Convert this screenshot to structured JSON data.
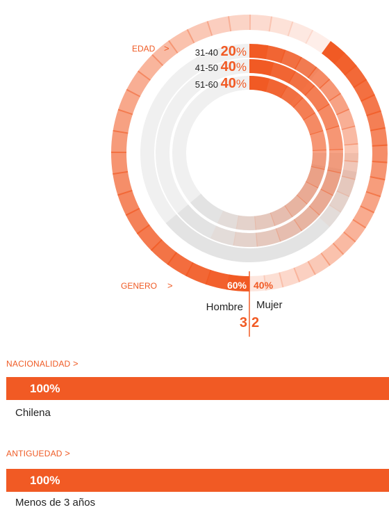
{
  "colors": {
    "accent": "#f15a24",
    "track": "#e6e6e6"
  },
  "sections": {
    "edad_label": "EDAD",
    "genero_label": "GENERO",
    "nacionalidad_label": "NACIONALIDAD",
    "antiguedad_label": "ANTIGUEDAD",
    "arrow": ">"
  },
  "chart_data": [
    {
      "type": "radial_bar",
      "group": "EDAD",
      "categories": [
        "31-40",
        "41-50",
        "51-60"
      ],
      "values": [
        20,
        40,
        40
      ],
      "unit": "%"
    },
    {
      "type": "pie",
      "group": "GENERO",
      "categories": [
        "Hombre",
        "Mujer"
      ],
      "values": [
        60,
        40
      ],
      "counts": [
        3,
        2
      ],
      "unit": "%"
    },
    {
      "type": "bar",
      "group": "NACIONALIDAD",
      "categories": [
        "Chilena"
      ],
      "values": [
        100
      ],
      "unit": "%"
    },
    {
      "type": "bar",
      "group": "ANTIGUEDAD",
      "categories": [
        "Menos de 3 años"
      ],
      "values": [
        100
      ],
      "unit": "%"
    }
  ]
}
